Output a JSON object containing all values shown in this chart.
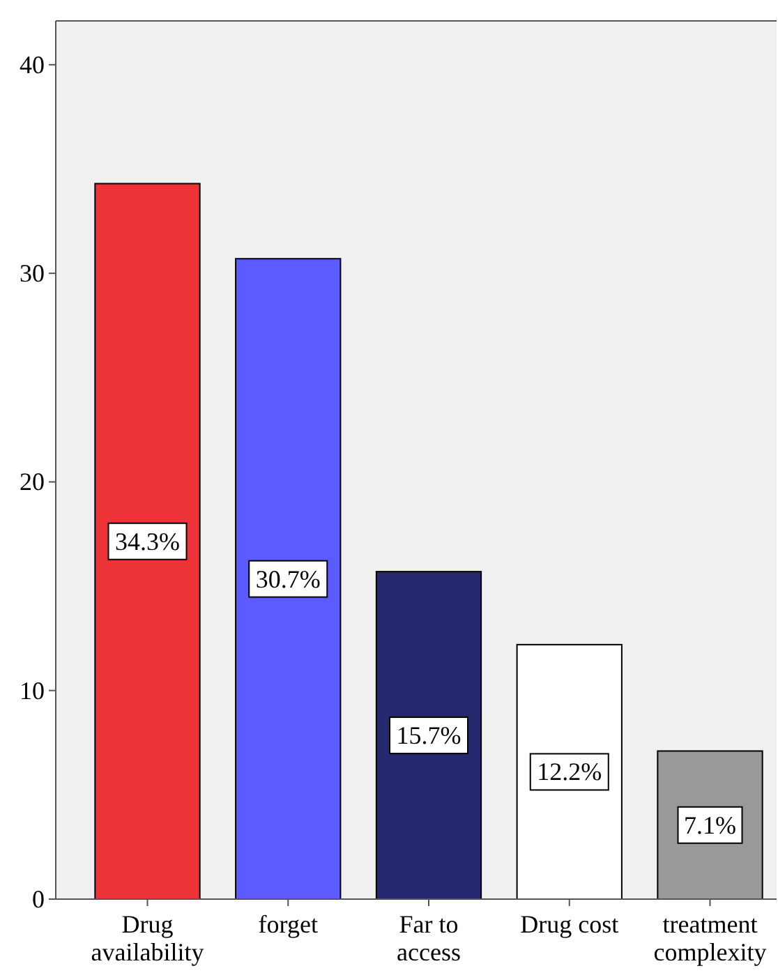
{
  "chart_data": {
    "type": "bar",
    "categories": [
      "Drug availability",
      "forget",
      "Far to access",
      "Drug cost",
      "treatment complexity"
    ],
    "values": [
      34.3,
      30.7,
      15.7,
      12.2,
      7.1
    ],
    "colors": [
      "#ee3338",
      "#5b5bff",
      "#262870",
      "#ffffff",
      "#999999"
    ],
    "value_labels": [
      "34.3%",
      "30.7%",
      "15.7%",
      "12.2%",
      "7.1%"
    ],
    "ylim": [
      0,
      42.1
    ],
    "yticks": [
      0,
      10,
      20,
      30,
      40
    ],
    "grid": false
  }
}
